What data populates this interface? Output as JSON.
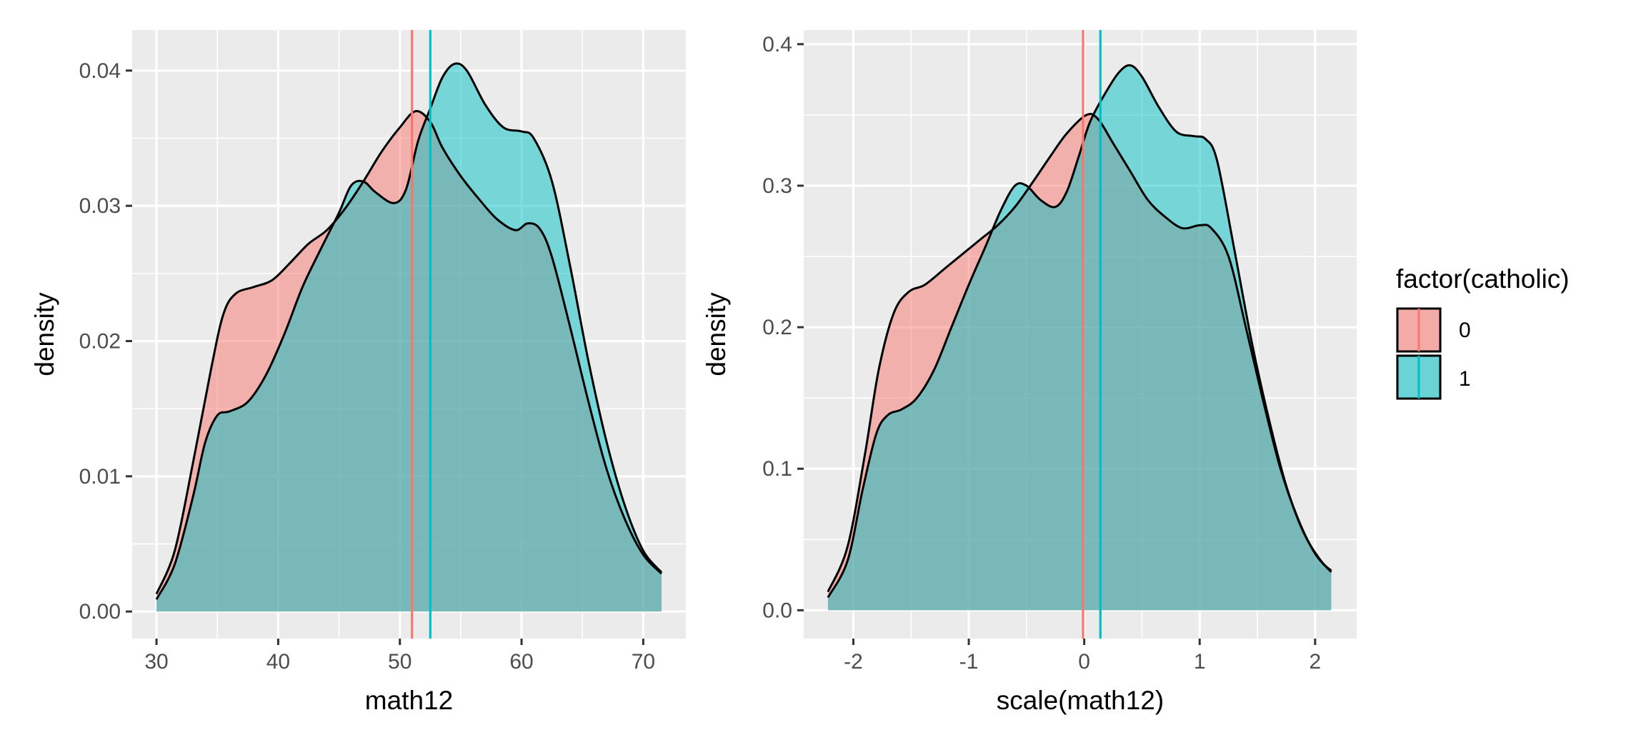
{
  "chart_data": [
    {
      "type": "area",
      "xlabel": "math12",
      "ylabel": "density",
      "xlim": [
        28,
        73.5
      ],
      "ylim": [
        -0.002,
        0.043
      ],
      "x_ticks": [
        30,
        40,
        50,
        60,
        70
      ],
      "x_tick_labels": [
        "30",
        "40",
        "50",
        "60",
        "70"
      ],
      "y_ticks": [
        0.0,
        0.01,
        0.02,
        0.03,
        0.04
      ],
      "y_tick_labels": [
        "0.00",
        "0.01",
        "0.02",
        "0.03",
        "0.04"
      ],
      "grid": true,
      "series": [
        {
          "name": "0",
          "color": "#F8766D",
          "mean": 51.0,
          "points": [
            [
              30,
              0.0013
            ],
            [
              31.5,
              0.0045
            ],
            [
              33,
              0.011
            ],
            [
              34.5,
              0.018
            ],
            [
              35.5,
              0.022
            ],
            [
              36.5,
              0.0235
            ],
            [
              38,
              0.024
            ],
            [
              39.5,
              0.0245
            ],
            [
              41,
              0.0258
            ],
            [
              42.5,
              0.0272
            ],
            [
              44,
              0.0282
            ],
            [
              45.5,
              0.0298
            ],
            [
              47,
              0.0318
            ],
            [
              48.5,
              0.034
            ],
            [
              50,
              0.0358
            ],
            [
              51.3,
              0.037
            ],
            [
              52.5,
              0.0362
            ],
            [
              53.5,
              0.0343
            ],
            [
              55,
              0.0322
            ],
            [
              56.5,
              0.0305
            ],
            [
              58,
              0.029
            ],
            [
              59.5,
              0.0282
            ],
            [
              60.5,
              0.0287
            ],
            [
              61.5,
              0.0283
            ],
            [
              62.5,
              0.0262
            ],
            [
              64,
              0.021
            ],
            [
              65.5,
              0.0155
            ],
            [
              67,
              0.0105
            ],
            [
              68.5,
              0.0068
            ],
            [
              70,
              0.0042
            ],
            [
              71.5,
              0.0028
            ]
          ]
        },
        {
          "name": "1",
          "color": "#00BFC4",
          "mean": 52.5,
          "points": [
            [
              30,
              0.0009
            ],
            [
              31.5,
              0.0035
            ],
            [
              33,
              0.0085
            ],
            [
              34,
              0.0125
            ],
            [
              35,
              0.0145
            ],
            [
              36,
              0.0148
            ],
            [
              37.5,
              0.0155
            ],
            [
              39,
              0.0175
            ],
            [
              40.5,
              0.0205
            ],
            [
              42,
              0.024
            ],
            [
              43.5,
              0.0268
            ],
            [
              45,
              0.0295
            ],
            [
              46,
              0.0315
            ],
            [
              47,
              0.0318
            ],
            [
              48,
              0.031
            ],
            [
              49.5,
              0.0302
            ],
            [
              50.5,
              0.0312
            ],
            [
              51.5,
              0.0348
            ],
            [
              52.5,
              0.0372
            ],
            [
              53.5,
              0.0395
            ],
            [
              54.5,
              0.0405
            ],
            [
              55.5,
              0.04
            ],
            [
              57,
              0.0375
            ],
            [
              58.5,
              0.0358
            ],
            [
              60,
              0.0355
            ],
            [
              61,
              0.035
            ],
            [
              62.5,
              0.0318
            ],
            [
              64,
              0.0255
            ],
            [
              65.5,
              0.0185
            ],
            [
              67,
              0.0125
            ],
            [
              68.5,
              0.0078
            ],
            [
              70,
              0.0045
            ],
            [
              71.5,
              0.0029
            ]
          ]
        }
      ]
    },
    {
      "type": "area",
      "xlabel": "scale(math12)",
      "ylabel": "density",
      "xlim": [
        -2.43,
        2.36
      ],
      "ylim": [
        -0.02,
        0.41
      ],
      "x_ticks": [
        -2,
        -1,
        0,
        1,
        2
      ],
      "x_tick_labels": [
        "-2",
        "-1",
        "0",
        "1",
        "2"
      ],
      "y_ticks": [
        0.0,
        0.1,
        0.2,
        0.3,
        0.4
      ],
      "y_tick_labels": [
        "0.0",
        "0.1",
        "0.2",
        "0.3",
        "0.4"
      ],
      "grid": true,
      "series": [
        {
          "name": "0",
          "color": "#F8766D",
          "mean": -0.01,
          "points": [
            [
              -2.22,
              0.013
            ],
            [
              -2.05,
              0.045
            ],
            [
              -1.9,
              0.11
            ],
            [
              -1.78,
              0.17
            ],
            [
              -1.65,
              0.21
            ],
            [
              -1.52,
              0.225
            ],
            [
              -1.38,
              0.23
            ],
            [
              -1.2,
              0.242
            ],
            [
              -1.05,
              0.252
            ],
            [
              -0.9,
              0.262
            ],
            [
              -0.75,
              0.272
            ],
            [
              -0.6,
              0.285
            ],
            [
              -0.45,
              0.302
            ],
            [
              -0.3,
              0.32
            ],
            [
              -0.15,
              0.337
            ],
            [
              0.02,
              0.35
            ],
            [
              0.12,
              0.347
            ],
            [
              0.25,
              0.33
            ],
            [
              0.4,
              0.31
            ],
            [
              0.55,
              0.29
            ],
            [
              0.7,
              0.278
            ],
            [
              0.85,
              0.27
            ],
            [
              1.0,
              0.272
            ],
            [
              1.1,
              0.27
            ],
            [
              1.25,
              0.25
            ],
            [
              1.4,
              0.2
            ],
            [
              1.55,
              0.148
            ],
            [
              1.7,
              0.1
            ],
            [
              1.85,
              0.065
            ],
            [
              2.0,
              0.04
            ],
            [
              2.14,
              0.027
            ]
          ]
        },
        {
          "name": "1",
          "color": "#00BFC4",
          "mean": 0.14,
          "points": [
            [
              -2.22,
              0.009
            ],
            [
              -2.05,
              0.035
            ],
            [
              -1.92,
              0.085
            ],
            [
              -1.8,
              0.125
            ],
            [
              -1.7,
              0.138
            ],
            [
              -1.58,
              0.142
            ],
            [
              -1.45,
              0.15
            ],
            [
              -1.3,
              0.17
            ],
            [
              -1.15,
              0.2
            ],
            [
              -1.0,
              0.23
            ],
            [
              -0.85,
              0.258
            ],
            [
              -0.72,
              0.283
            ],
            [
              -0.6,
              0.3
            ],
            [
              -0.5,
              0.3
            ],
            [
              -0.38,
              0.29
            ],
            [
              -0.25,
              0.285
            ],
            [
              -0.15,
              0.296
            ],
            [
              -0.05,
              0.32
            ],
            [
              0.05,
              0.345
            ],
            [
              0.18,
              0.365
            ],
            [
              0.3,
              0.38
            ],
            [
              0.4,
              0.385
            ],
            [
              0.5,
              0.377
            ],
            [
              0.65,
              0.355
            ],
            [
              0.8,
              0.338
            ],
            [
              0.95,
              0.335
            ],
            [
              1.05,
              0.333
            ],
            [
              1.15,
              0.318
            ],
            [
              1.3,
              0.255
            ],
            [
              1.45,
              0.19
            ],
            [
              1.6,
              0.135
            ],
            [
              1.75,
              0.088
            ],
            [
              1.9,
              0.055
            ],
            [
              2.05,
              0.035
            ],
            [
              2.14,
              0.028
            ]
          ]
        }
      ]
    }
  ],
  "legend": {
    "title": "factor(catholic)",
    "placement": "right",
    "items": [
      {
        "label": "0",
        "color": "#F8766D"
      },
      {
        "label": "1",
        "color": "#00BFC4"
      }
    ]
  }
}
